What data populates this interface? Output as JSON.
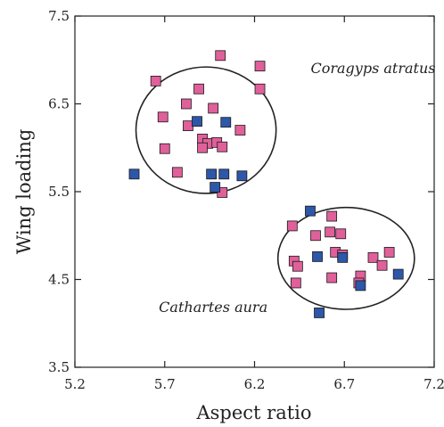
{
  "chart_data": {
    "type": "scatter",
    "xlabel": "Aspect ratio",
    "ylabel": "Wing loading",
    "xlim": [
      5.2,
      7.2
    ],
    "ylim": [
      3.5,
      7.5
    ],
    "xticks": [
      "5.2",
      "5.7",
      "6.2",
      "6.7",
      "7.2"
    ],
    "yticks": [
      "3.5",
      "4.5",
      "5.5",
      "6.5",
      "7.5"
    ],
    "grid": false,
    "legend": "none",
    "colors": {
      "pink": "#e0609a",
      "blue": "#2d57a8"
    },
    "annotations": [
      {
        "text": "Coragyps atratus",
        "x": 6.86,
        "y": 6.85
      },
      {
        "text": "Cathartes aura",
        "x": 5.97,
        "y": 4.13
      }
    ],
    "ellipses": [
      {
        "cx": 5.93,
        "cy": 6.2,
        "rx": 0.39,
        "ry": 0.72
      },
      {
        "cx": 6.71,
        "cy": 4.74,
        "rx": 0.38,
        "ry": 0.58
      }
    ],
    "series": [
      {
        "color": "pink",
        "points": [
          [
            6.01,
            7.05
          ],
          [
            6.23,
            6.93
          ],
          [
            5.65,
            6.76
          ],
          [
            6.23,
            6.67
          ],
          [
            5.89,
            6.67
          ],
          [
            5.82,
            6.5
          ],
          [
            5.69,
            6.35
          ],
          [
            5.97,
            6.45
          ],
          [
            5.83,
            6.25
          ],
          [
            6.12,
            6.2
          ],
          [
            5.91,
            6.1
          ],
          [
            5.94,
            6.05
          ],
          [
            5.99,
            6.06
          ],
          [
            6.02,
            6.01
          ],
          [
            5.7,
            5.99
          ],
          [
            5.91,
            6.0
          ],
          [
            5.77,
            5.72
          ],
          [
            6.02,
            5.49
          ],
          [
            6.54,
            5.0
          ],
          [
            6.41,
            5.11
          ],
          [
            6.63,
            5.22
          ],
          [
            6.62,
            5.04
          ],
          [
            6.68,
            5.02
          ],
          [
            6.65,
            4.81
          ],
          [
            6.69,
            4.78
          ],
          [
            6.95,
            4.81
          ],
          [
            6.86,
            4.75
          ],
          [
            6.91,
            4.66
          ],
          [
            6.42,
            4.71
          ],
          [
            6.44,
            4.65
          ],
          [
            6.43,
            4.46
          ],
          [
            6.63,
            4.52
          ],
          [
            6.79,
            4.54
          ],
          [
            6.78,
            4.46
          ]
        ]
      },
      {
        "color": "blue",
        "points": [
          [
            5.53,
            5.7
          ],
          [
            5.88,
            6.3
          ],
          [
            6.04,
            6.29
          ],
          [
            5.96,
            5.7
          ],
          [
            6.03,
            5.7
          ],
          [
            6.13,
            5.68
          ],
          [
            5.98,
            5.55
          ],
          [
            6.51,
            5.28
          ],
          [
            6.55,
            4.76
          ],
          [
            6.69,
            4.75
          ],
          [
            6.79,
            4.43
          ],
          [
            7.0,
            4.56
          ],
          [
            6.56,
            4.12
          ]
        ]
      }
    ]
  }
}
